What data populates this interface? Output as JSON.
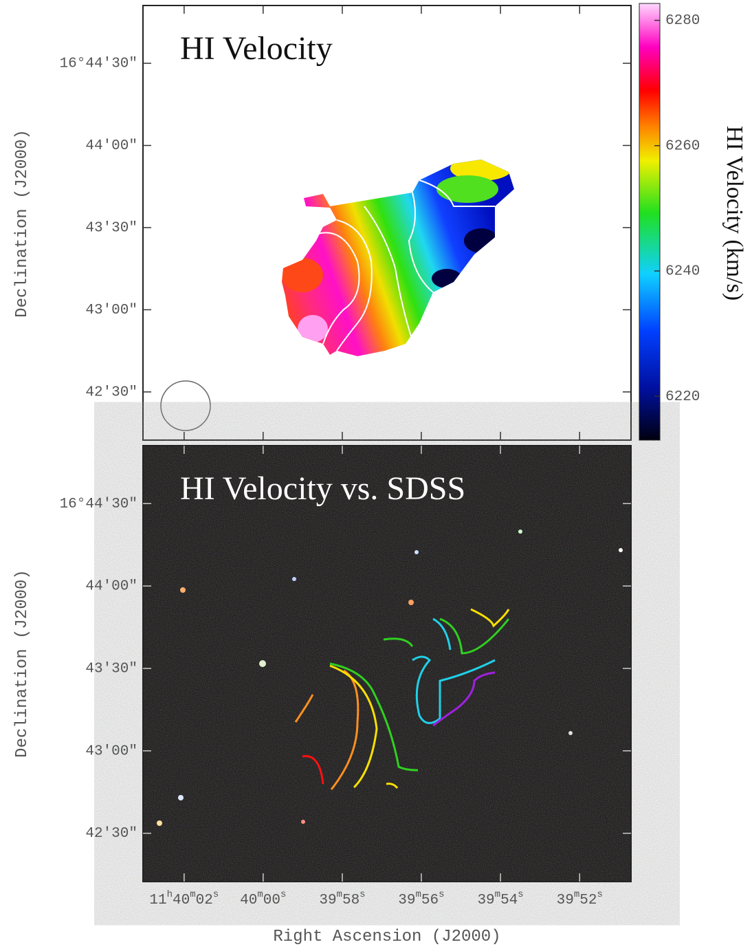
{
  "chart_data": [
    {
      "type": "heatmap",
      "title": "HI Velocity",
      "ylabel": "Declination (J2000)",
      "xlim": [
        11.667511,
        11.664083
      ],
      "xticks": [
        11.667222,
        11.666667,
        11.666111,
        11.665556,
        11.665,
        11.664444
      ],
      "ylim": [
        16.703444,
        16.747528
      ],
      "yticks": [
        {
          "value": 16.741667,
          "label": "16°44′30″"
        },
        {
          "value": 16.733333,
          "label": "44′00″"
        },
        {
          "value": 16.725,
          "label": "43′30″"
        },
        {
          "value": 16.716667,
          "label": "43′00″"
        },
        {
          "value": 16.708333,
          "label": "42′30″"
        }
      ],
      "colorbar": {
        "label": "HI Velocity (km/s)",
        "lim": [
          6213,
          6282.7
        ],
        "ticks": [
          6220,
          6240,
          6260,
          6280
        ]
      }
    },
    {
      "type": "image",
      "title": "HI Velocity vs. SDSS",
      "xlabel": "Right Ascension (J2000)",
      "ylabel": "Declination (J2000)",
      "xlim": [
        11.667511,
        11.664083
      ],
      "xticks": [
        {
          "value": 11.667222,
          "label": "11h40m02s"
        },
        {
          "value": 11.666667,
          "label": "40m00s"
        },
        {
          "value": 11.666111,
          "label": "39m58s"
        },
        {
          "value": 11.665556,
          "label": "39m56s"
        },
        {
          "value": 11.665,
          "label": "39m54s"
        },
        {
          "value": 11.664444,
          "label": "39m52s"
        }
      ],
      "ylim": [
        16.703444,
        16.747528
      ],
      "yticks": [
        {
          "value": 16.741667,
          "label": "16°44′30″"
        },
        {
          "value": 16.733333,
          "label": "44′00″"
        },
        {
          "value": 16.725,
          "label": "43′30″"
        },
        {
          "value": 16.716667,
          "label": "43′00″"
        },
        {
          "value": 16.708333,
          "label": "42′30″"
        }
      ]
    }
  ]
}
